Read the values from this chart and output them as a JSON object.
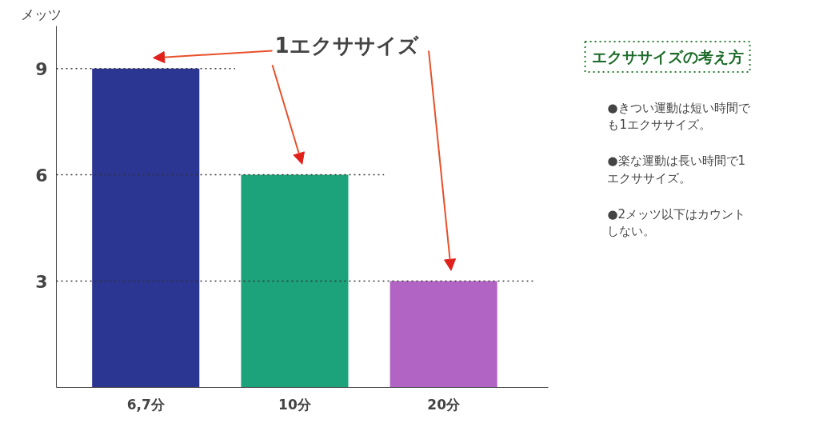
{
  "chart_data": {
    "type": "bar",
    "ylabel": "メッツ",
    "categories": [
      "6,7分",
      "10分",
      "20分"
    ],
    "values": [
      9,
      6,
      3
    ],
    "colors": [
      "#2b3592",
      "#1ca37b",
      "#b264c4"
    ],
    "ylim": [
      0,
      10.2
    ],
    "yticks": [
      3,
      6,
      9
    ],
    "grid": false,
    "ref_lines": [
      {
        "axis": "y",
        "value": 9,
        "label": null,
        "line_style": "dotted"
      },
      {
        "axis": "y",
        "value": 6,
        "label": null,
        "line_style": "dotted"
      },
      {
        "axis": "y",
        "value": 3,
        "label": null,
        "line_style": "dotted"
      }
    ],
    "annotations": [
      "1エクササイズ",
      "エクササイズの考え方",
      "●きつい運動は短い時間でも1エクササイズ。",
      "●楽な運動は長い時間で1エクササイズ。",
      "●2メッツ以下はカウントしない。"
    ]
  }
}
